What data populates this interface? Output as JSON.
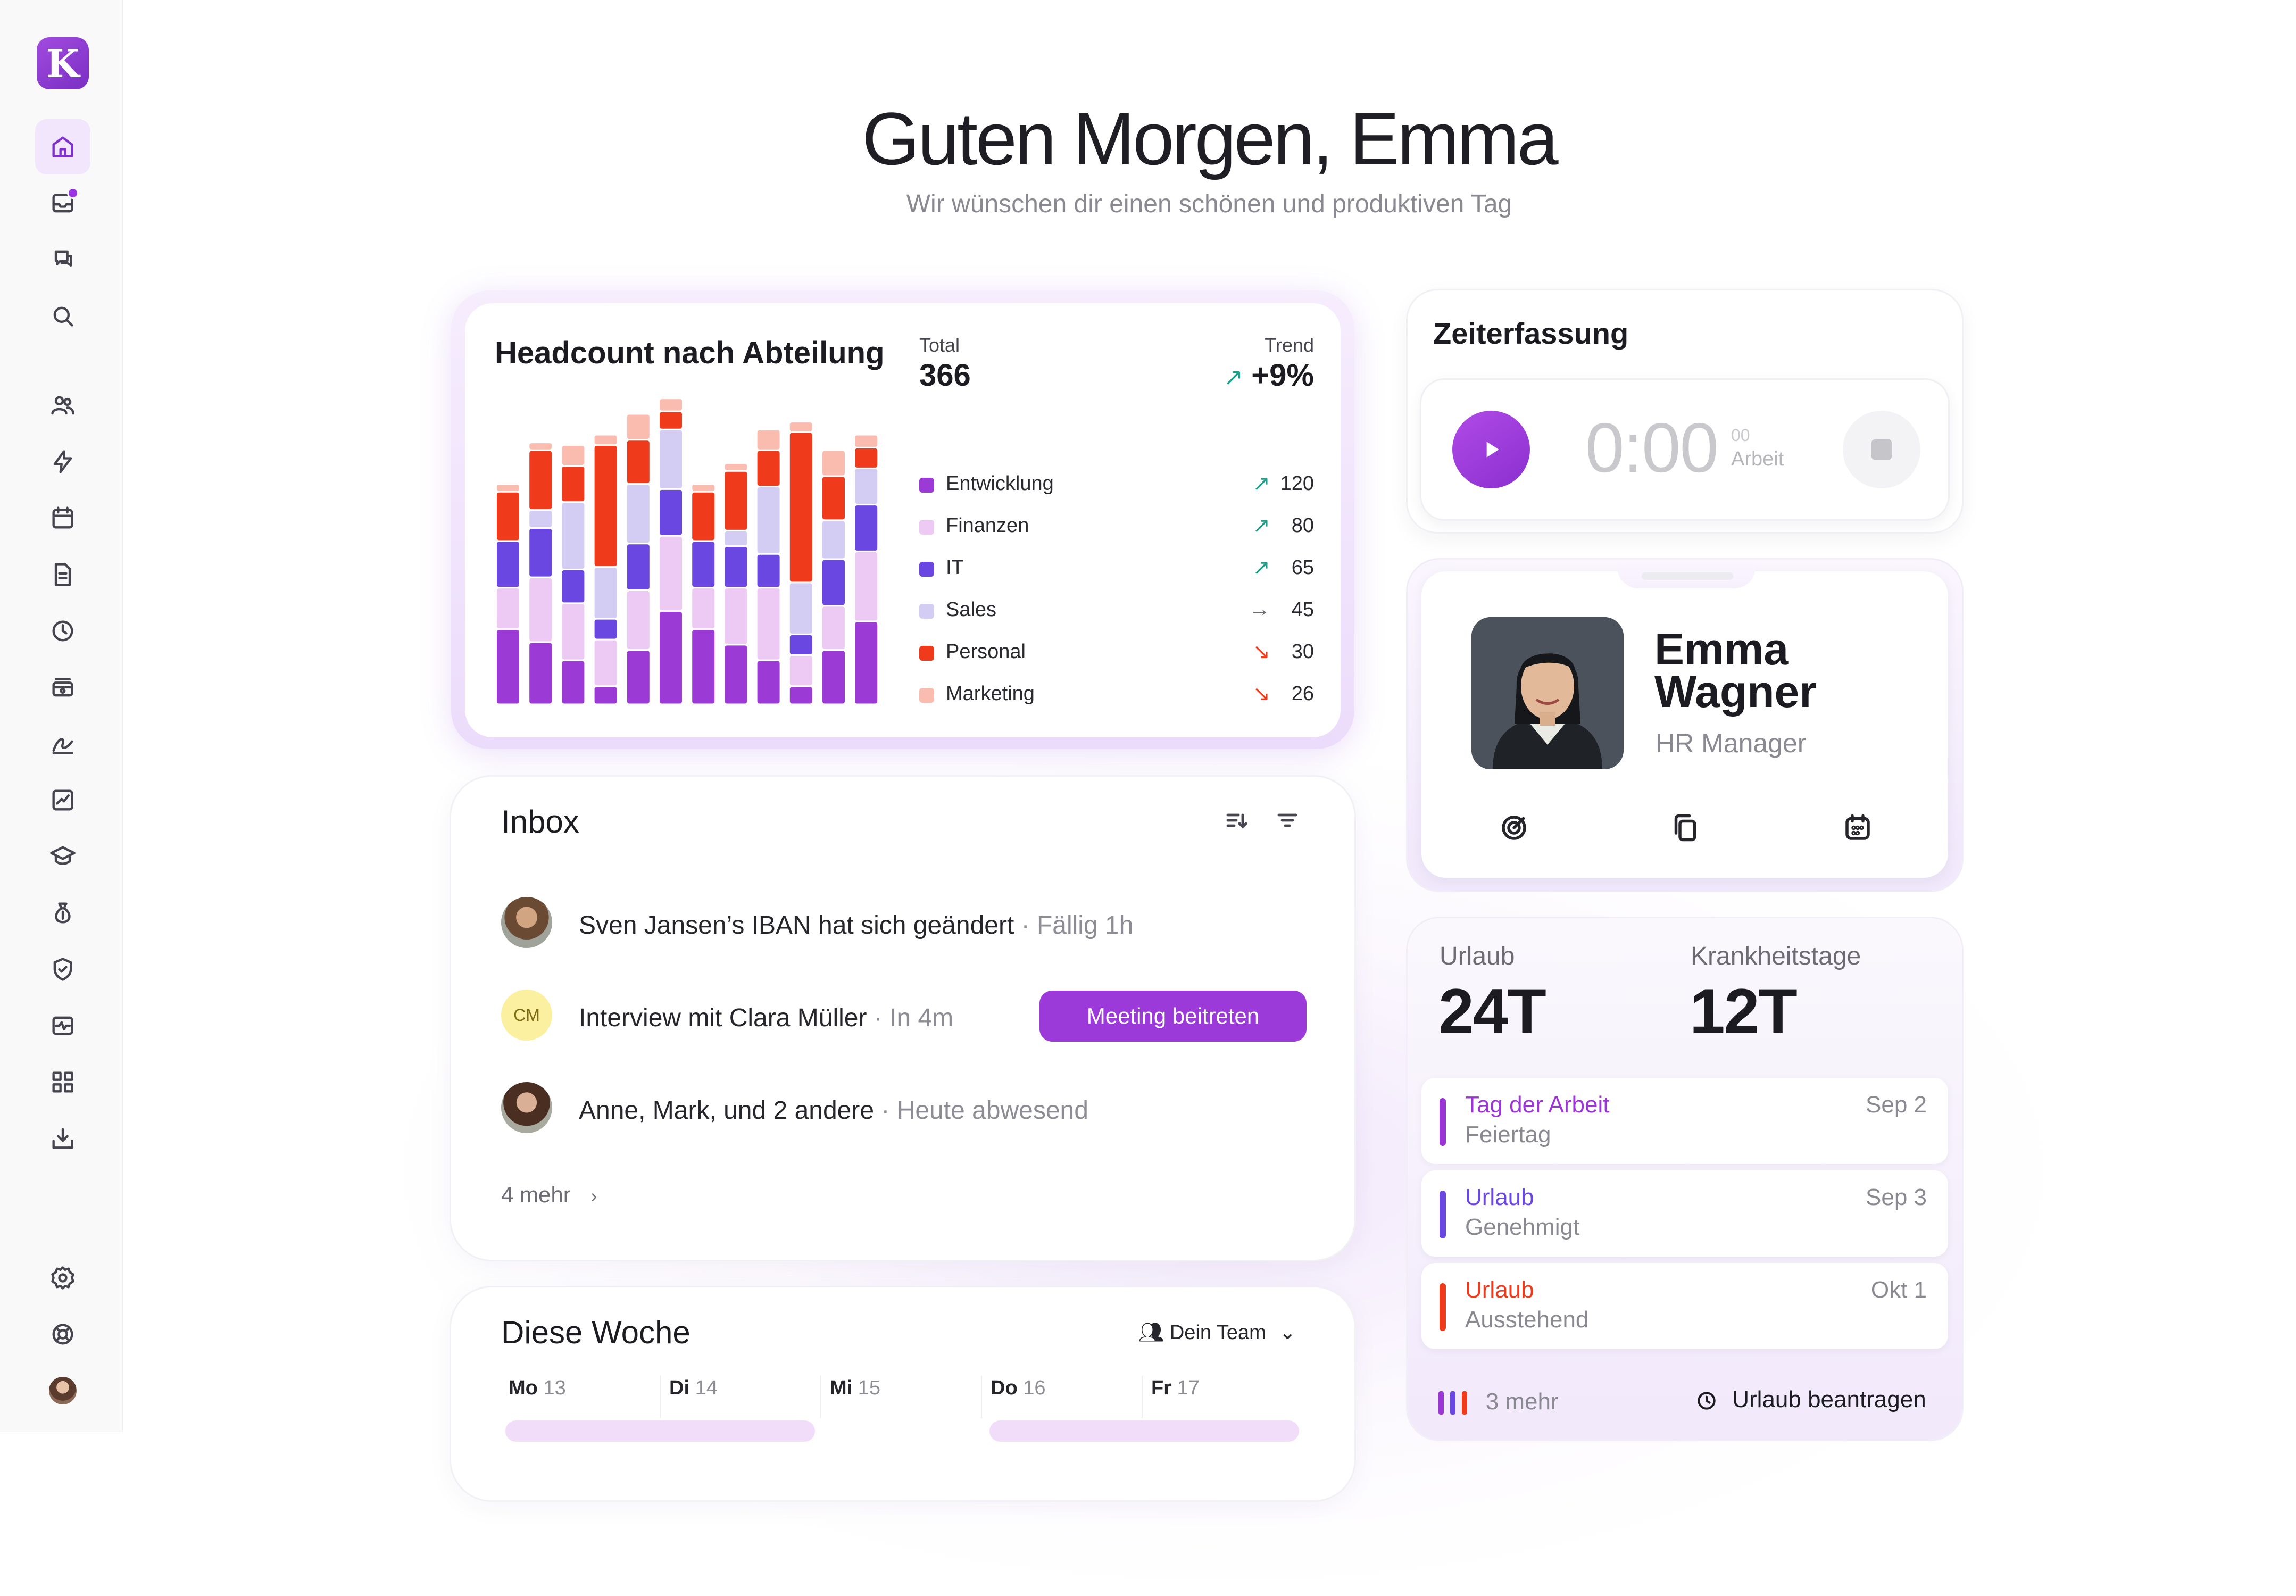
{
  "app": {
    "logo_letter": "K",
    "brand_color": "#9b3ad8"
  },
  "greeting": {
    "title": "Guten Morgen, Emma",
    "subtitle": "Wir wünschen dir einen schönen und produktiven Tag"
  },
  "sidebar": {
    "items": [
      {
        "icon": "home-icon",
        "active": true
      },
      {
        "icon": "inbox-icon",
        "badge": true
      },
      {
        "icon": "chat-icon"
      },
      {
        "icon": "search-icon"
      },
      {
        "icon": "people-icon"
      },
      {
        "icon": "lightning-icon"
      },
      {
        "icon": "calendar-icon"
      },
      {
        "icon": "document-icon"
      },
      {
        "icon": "clock-icon"
      },
      {
        "icon": "payroll-icon"
      },
      {
        "icon": "signature-icon"
      },
      {
        "icon": "chart-icon"
      },
      {
        "icon": "graduation-icon"
      },
      {
        "icon": "money-bag-icon"
      },
      {
        "icon": "shield-icon"
      },
      {
        "icon": "health-icon"
      },
      {
        "icon": "apps-icon"
      },
      {
        "icon": "download-icon"
      }
    ],
    "bottom": [
      {
        "icon": "settings-icon"
      },
      {
        "icon": "help-icon"
      },
      {
        "icon": "user-avatar"
      }
    ]
  },
  "headcount": {
    "title": "Headcount nach Abteilung",
    "total_label": "Total",
    "total_value": "366",
    "trend_label": "Trend",
    "trend_value": "+9%",
    "legend": [
      {
        "name": "Entwicklung",
        "value": "120",
        "trend": "up",
        "color": "#9c3ad6"
      },
      {
        "name": "Finanzen",
        "value": "80",
        "trend": "up",
        "color": "#eccaf3"
      },
      {
        "name": "IT",
        "value": "65",
        "trend": "up",
        "color": "#6a47e1"
      },
      {
        "name": "Sales",
        "value": "45",
        "trend": "flat",
        "color": "#d3cdf4"
      },
      {
        "name": "Personal",
        "value": "30",
        "trend": "down",
        "color": "#ef3a1c"
      },
      {
        "name": "Marketing",
        "value": "26",
        "trend": "down",
        "color": "#fbbcb0"
      }
    ]
  },
  "chart_data": {
    "type": "bar",
    "stacked": true,
    "categories": [
      "1",
      "2",
      "3",
      "4",
      "5",
      "6",
      "7",
      "8",
      "9",
      "10",
      "11",
      "12"
    ],
    "series": [
      {
        "name": "Entwicklung",
        "values": [
          29,
          24,
          17,
          7,
          21,
          36,
          29,
          23,
          17,
          7,
          21,
          32
        ]
      },
      {
        "name": "Finanzen",
        "values": [
          16,
          25,
          22,
          18,
          23,
          29,
          16,
          22,
          28,
          12,
          17,
          27
        ]
      },
      {
        "name": "IT",
        "values": [
          18,
          19,
          13,
          8,
          18,
          18,
          18,
          16,
          13,
          8,
          18,
          18
        ]
      },
      {
        "name": "Sales",
        "values": [
          0,
          7,
          26,
          20,
          23,
          23,
          0,
          6,
          26,
          20,
          15,
          14
        ]
      },
      {
        "name": "Personal",
        "values": [
          19,
          23,
          14,
          47,
          17,
          7,
          19,
          23,
          14,
          58,
          17,
          8
        ]
      },
      {
        "name": "Marketing",
        "values": [
          3,
          3,
          8,
          4,
          10,
          5,
          3,
          3,
          8,
          4,
          10,
          5
        ]
      }
    ],
    "colors": [
      "#9c3ad6",
      "#eccaf3",
      "#6a47e1",
      "#d3cdf4",
      "#ef3a1c",
      "#fbbcb0"
    ],
    "ylim": [
      0,
      120
    ]
  },
  "inbox": {
    "title": "Inbox",
    "items": [
      {
        "text": "Sven Jansen’s IBAN hat sich geändert",
        "meta": " · Fällig 1h"
      },
      {
        "text": "Interview mit Clara Müller",
        "meta": " · In 4m",
        "initials": "CM",
        "action": "Meeting beitreten"
      },
      {
        "text": "Anne, Mark, und 2 andere",
        "meta": " · Heute abwesend"
      }
    ],
    "more": "4 mehr"
  },
  "week": {
    "title": "Diese Woche",
    "team_filter": "Dein Team",
    "days": [
      {
        "d": "Mo",
        "n": "13"
      },
      {
        "d": "Di",
        "n": "14"
      },
      {
        "d": "Mi",
        "n": "15"
      },
      {
        "d": "Do",
        "n": "16"
      },
      {
        "d": "Fr",
        "n": "17"
      }
    ]
  },
  "time": {
    "title": "Zeiterfassung",
    "clock": "0:00",
    "seconds": "00",
    "mode": "Arbeit"
  },
  "profile": {
    "first_name": "Emma",
    "last_name": "Wagner",
    "role": "HR Manager"
  },
  "leave": {
    "vacation_label": "Urlaub",
    "vacation_value": "24T",
    "sick_label": "Krankheitstage",
    "sick_value": "12T",
    "items": [
      {
        "title": "Tag der Arbeit",
        "status": "Feiertag",
        "date": "Sep 2",
        "color": "#9b35d6"
      },
      {
        "title": "Urlaub",
        "status": "Genehmigt",
        "date": "Sep 3",
        "color": "#6a47e1"
      },
      {
        "title": "Urlaub",
        "status": "Ausstehend",
        "date": "Okt 1",
        "color": "#ef3a1c"
      }
    ],
    "more": "3 mehr",
    "request": "Urlaub beantragen"
  }
}
